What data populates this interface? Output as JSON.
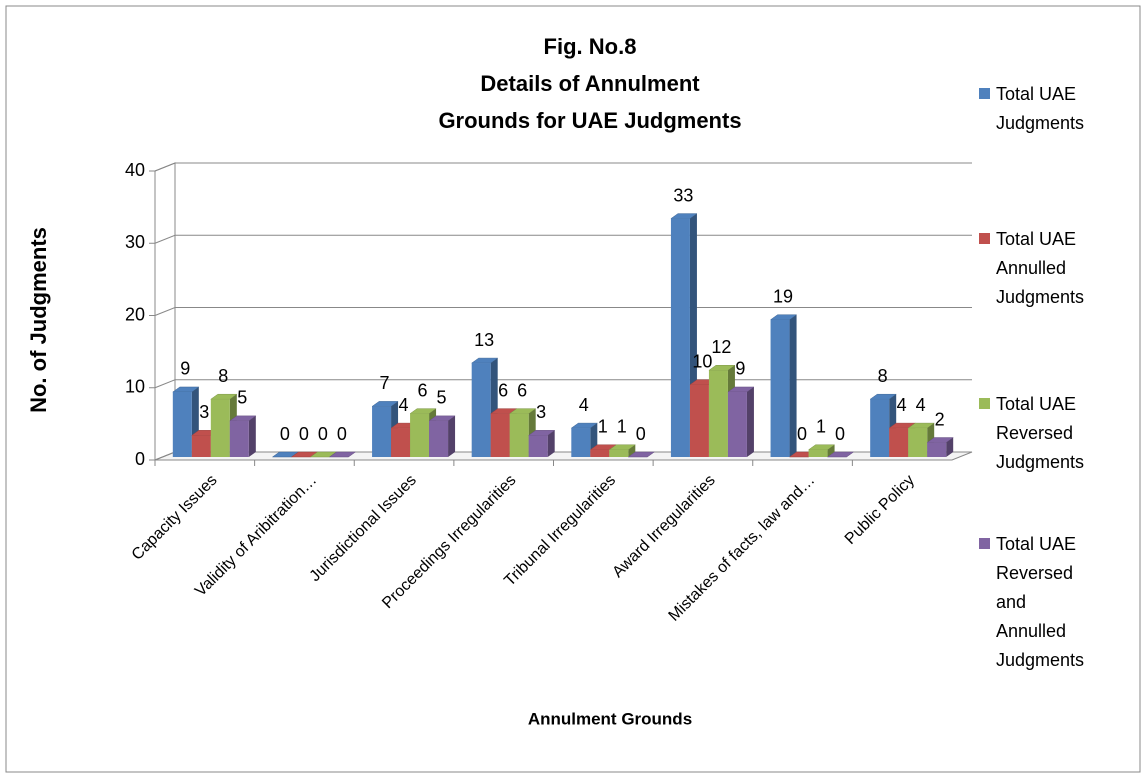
{
  "chart_data": {
    "type": "bar3d",
    "title": [
      "Fig. No.8",
      "Details of Annulment",
      "Grounds for UAE Judgments"
    ],
    "y_label": "No. of Judgments",
    "x_label": "Annulment Grounds",
    "categories": [
      "Capacity Issues",
      "Validity of Aribitration…",
      "Jurisdictional Issues",
      "Proceedings Irregularities",
      "Tribunal Irregularities",
      "Award Irregularities",
      "Mistakes of facts, law and…",
      "Public Policy"
    ],
    "series": [
      {
        "name": "Total UAE Judgments",
        "color": "#4f81bd",
        "values": [
          9,
          0,
          7,
          13,
          4,
          33,
          19,
          8
        ]
      },
      {
        "name": "Total UAE Annulled Judgments",
        "color": "#c0504d",
        "values": [
          3,
          0,
          4,
          6,
          1,
          10,
          0,
          4
        ]
      },
      {
        "name": "Total UAE Reversed Judgments",
        "color": "#9bbb59",
        "values": [
          8,
          0,
          6,
          6,
          1,
          12,
          1,
          4
        ]
      },
      {
        "name": "Total UAE Reversed and Annulled Judgments",
        "color": "#8064a2",
        "values": [
          5,
          0,
          5,
          3,
          0,
          9,
          0,
          2
        ]
      }
    ],
    "ylim": [
      0,
      40
    ],
    "yticks": [
      0,
      10,
      20,
      30,
      40
    ],
    "grid": true,
    "legend": "right"
  }
}
